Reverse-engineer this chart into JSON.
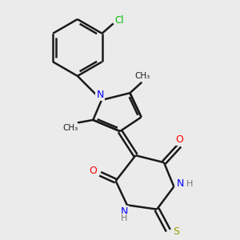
{
  "background_color": "#ebebeb",
  "bond_color": "#1a1a1a",
  "bond_width": 1.8,
  "figsize": [
    3.0,
    3.0
  ],
  "dpi": 100,
  "atom_colors": {
    "N": "#0000ff",
    "O": "#ff0000",
    "S": "#999900",
    "Cl": "#00bb00",
    "H": "#777777"
  }
}
